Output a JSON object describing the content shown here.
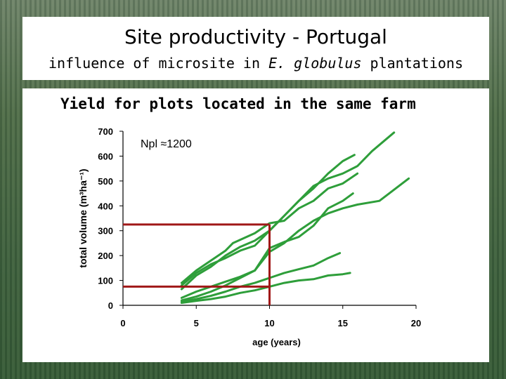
{
  "slide": {
    "title": "Site productivity - Portugal",
    "subtitle_prefix": "influence of microsite in ",
    "subtitle_species": "E. globulus",
    "subtitle_suffix": " plantations"
  },
  "chart_data": {
    "type": "line",
    "title": "Yield for plots located in the same farm",
    "annotation": "Npl ≈1200",
    "xlabel": "age (years)",
    "ylabel": "total volume (m³ha⁻¹)",
    "xlim": [
      0,
      20
    ],
    "ylim": [
      0,
      700
    ],
    "xticks": [
      0,
      5,
      10,
      15,
      20
    ],
    "yticks": [
      0,
      100,
      200,
      300,
      400,
      500,
      600,
      700
    ],
    "grid": false,
    "line_color": "#2e9e3a",
    "reference_color": "#a01818",
    "series": [
      {
        "values": [
          [
            4,
            80
          ],
          [
            5,
            130
          ],
          [
            6,
            165
          ],
          [
            7,
            190
          ],
          [
            8,
            220
          ],
          [
            9,
            240
          ],
          [
            10,
            300
          ],
          [
            11,
            360
          ],
          [
            12,
            420
          ],
          [
            13,
            470
          ],
          [
            14,
            530
          ],
          [
            15,
            580
          ],
          [
            15.8,
            605
          ]
        ]
      },
      {
        "values": [
          [
            4,
            65
          ],
          [
            5,
            120
          ],
          [
            6,
            155
          ],
          [
            7,
            200
          ],
          [
            8,
            235
          ],
          [
            9,
            260
          ],
          [
            10,
            300
          ],
          [
            11,
            360
          ],
          [
            12,
            420
          ],
          [
            13,
            480
          ],
          [
            14,
            510
          ],
          [
            15,
            530
          ],
          [
            16,
            560
          ],
          [
            17,
            620
          ],
          [
            18.5,
            695
          ]
        ]
      },
      {
        "values": [
          [
            4,
            90
          ],
          [
            5,
            140
          ],
          [
            6,
            180
          ],
          [
            7,
            220
          ],
          [
            7.5,
            250
          ],
          [
            9,
            290
          ],
          [
            10,
            330
          ],
          [
            11,
            340
          ],
          [
            12,
            390
          ],
          [
            13,
            420
          ],
          [
            14,
            470
          ],
          [
            15,
            490
          ],
          [
            16,
            530
          ]
        ]
      },
      {
        "values": [
          [
            4,
            30
          ],
          [
            5,
            55
          ],
          [
            6,
            75
          ],
          [
            7,
            95
          ],
          [
            8,
            115
          ],
          [
            9,
            140
          ],
          [
            10,
            230
          ],
          [
            11,
            255
          ],
          [
            12,
            275
          ],
          [
            13,
            320
          ],
          [
            14,
            390
          ],
          [
            15,
            420
          ],
          [
            15.7,
            450
          ]
        ]
      },
      {
        "values": [
          [
            4,
            20
          ],
          [
            5,
            35
          ],
          [
            6,
            55
          ],
          [
            7,
            80
          ],
          [
            8,
            110
          ],
          [
            9,
            140
          ],
          [
            10,
            215
          ],
          [
            11,
            250
          ],
          [
            12,
            300
          ],
          [
            13,
            340
          ],
          [
            14,
            370
          ],
          [
            15,
            390
          ],
          [
            16,
            405
          ],
          [
            17.5,
            420
          ],
          [
            19.5,
            510
          ]
        ]
      },
      {
        "values": [
          [
            4,
            15
          ],
          [
            5,
            25
          ],
          [
            6,
            38
          ],
          [
            7,
            55
          ],
          [
            8,
            75
          ],
          [
            9,
            90
          ],
          [
            10,
            110
          ],
          [
            11,
            130
          ],
          [
            12,
            145
          ],
          [
            13,
            160
          ],
          [
            14,
            190
          ],
          [
            14.8,
            210
          ]
        ]
      },
      {
        "values": [
          [
            4,
            10
          ],
          [
            5,
            18
          ],
          [
            6,
            25
          ],
          [
            7,
            35
          ],
          [
            8,
            50
          ],
          [
            9,
            60
          ],
          [
            10,
            75
          ],
          [
            11,
            90
          ],
          [
            12,
            100
          ],
          [
            13,
            105
          ],
          [
            14,
            120
          ],
          [
            15,
            125
          ],
          [
            15.5,
            130
          ]
        ]
      }
    ],
    "reference_lines": {
      "x": 10,
      "y_levels": [
        325,
        75
      ]
    }
  }
}
